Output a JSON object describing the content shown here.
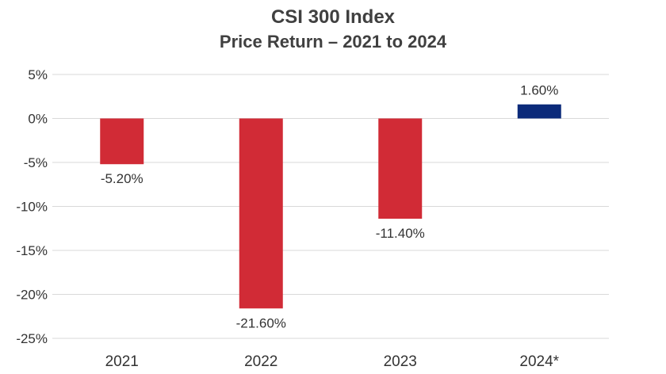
{
  "colors": {
    "negative": "#d12b36",
    "positive": "#0b2a7a",
    "grid": "#d9d9d9",
    "text": "#333333"
  },
  "chart_data": {
    "type": "bar",
    "title": "CSI 300 Index",
    "subtitle": "Price Return – 2021 to 2024",
    "categories": [
      "2021",
      "2022",
      "2023",
      "2024*"
    ],
    "values": [
      -5.2,
      -21.6,
      -11.4,
      1.6
    ],
    "data_labels": [
      "-5.20%",
      "-21.60%",
      "-11.40%",
      "1.60%"
    ],
    "ylim": [
      -25,
      5
    ],
    "yticks": [
      5,
      0,
      -5,
      -10,
      -15,
      -20,
      -25
    ],
    "ytick_labels": [
      "5%",
      "0%",
      "-5%",
      "-10%",
      "-15%",
      "-20%",
      "-25%"
    ],
    "xlabel": "",
    "ylabel": "",
    "grid": true
  }
}
